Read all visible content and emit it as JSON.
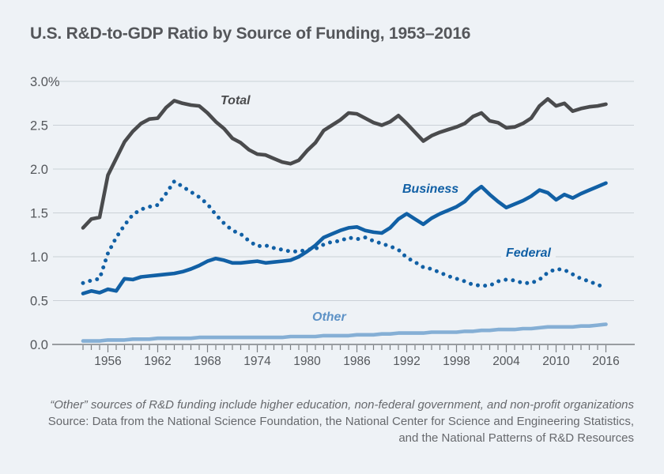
{
  "page": {
    "background": "#eef2f6",
    "title": "U.S. R&D-to-GDP Ratio by Source of Funding, 1953–2016"
  },
  "footnote": {
    "line1": "“Other” sources of R&D funding include higher education, non-federal government, and non-profit organizations",
    "line2": "Source: Data from the National Science Foundation, the National Center for Science and Engineering Statistics,",
    "line3": "and the National Patterns of R&D Resources"
  },
  "chart_data": {
    "type": "line",
    "title": "U.S. R&D-to-GDP Ratio by Source of Funding, 1953–2016",
    "xlabel": "",
    "ylabel": "",
    "x_range": [
      1953,
      2016
    ],
    "ylim": [
      0,
      3.0
    ],
    "grid": "horizontal",
    "grid_color": "#cbd1d7",
    "axis_color": "#7c8084",
    "y_ticks": [
      {
        "value": 3.0,
        "label": "3.0%"
      },
      {
        "value": 2.5,
        "label": "2.5"
      },
      {
        "value": 2.0,
        "label": "2.0"
      },
      {
        "value": 1.5,
        "label": "1.5"
      },
      {
        "value": 1.0,
        "label": "1.0"
      },
      {
        "value": 0.5,
        "label": "0.5"
      },
      {
        "value": 0.0,
        "label": "0.0"
      }
    ],
    "x_tick_labels": [
      "1956",
      "1962",
      "1968",
      "1974",
      "1980",
      "1986",
      "1992",
      "1998",
      "2004",
      "2010",
      "2016"
    ],
    "years": [
      1953,
      1954,
      1955,
      1956,
      1957,
      1958,
      1959,
      1960,
      1961,
      1962,
      1963,
      1964,
      1965,
      1966,
      1967,
      1968,
      1969,
      1970,
      1971,
      1972,
      1973,
      1974,
      1975,
      1976,
      1977,
      1978,
      1979,
      1980,
      1981,
      1982,
      1983,
      1984,
      1985,
      1986,
      1987,
      1988,
      1989,
      1990,
      1991,
      1992,
      1993,
      1994,
      1995,
      1996,
      1997,
      1998,
      1999,
      2000,
      2001,
      2002,
      2003,
      2004,
      2005,
      2006,
      2007,
      2008,
      2009,
      2010,
      2011,
      2012,
      2013,
      2014,
      2015,
      2016
    ],
    "series": [
      {
        "name": "Total",
        "color": "#4a4b4d",
        "style": "solid",
        "width": 4.6,
        "values": [
          1.33,
          1.43,
          1.45,
          1.93,
          2.12,
          2.31,
          2.43,
          2.52,
          2.57,
          2.58,
          2.7,
          2.78,
          2.75,
          2.73,
          2.72,
          2.64,
          2.54,
          2.46,
          2.35,
          2.3,
          2.22,
          2.17,
          2.16,
          2.12,
          2.08,
          2.06,
          2.1,
          2.21,
          2.3,
          2.44,
          2.5,
          2.56,
          2.64,
          2.63,
          2.58,
          2.53,
          2.5,
          2.54,
          2.61,
          2.52,
          2.42,
          2.32,
          2.38,
          2.42,
          2.45,
          2.48,
          2.52,
          2.6,
          2.64,
          2.55,
          2.53,
          2.47,
          2.48,
          2.52,
          2.58,
          2.72,
          2.8,
          2.72,
          2.75,
          2.66,
          2.69,
          2.71,
          2.72,
          2.74
        ]
      },
      {
        "name": "Business",
        "color": "#1160a5",
        "style": "solid",
        "width": 4.6,
        "values": [
          0.58,
          0.61,
          0.59,
          0.63,
          0.61,
          0.75,
          0.74,
          0.77,
          0.78,
          0.79,
          0.8,
          0.81,
          0.83,
          0.86,
          0.9,
          0.95,
          0.98,
          0.96,
          0.93,
          0.93,
          0.94,
          0.95,
          0.93,
          0.94,
          0.95,
          0.96,
          1.0,
          1.06,
          1.13,
          1.22,
          1.26,
          1.3,
          1.33,
          1.34,
          1.3,
          1.28,
          1.27,
          1.33,
          1.43,
          1.49,
          1.43,
          1.37,
          1.44,
          1.49,
          1.53,
          1.57,
          1.63,
          1.73,
          1.8,
          1.71,
          1.63,
          1.56,
          1.6,
          1.64,
          1.69,
          1.76,
          1.73,
          1.65,
          1.71,
          1.67,
          1.72,
          1.76,
          1.8,
          1.84
        ]
      },
      {
        "name": "Federal",
        "color": "#1160a5",
        "style": "dotted",
        "width": 5,
        "values": [
          0.7,
          0.73,
          0.75,
          1.04,
          1.22,
          1.36,
          1.48,
          1.54,
          1.57,
          1.59,
          1.72,
          1.86,
          1.8,
          1.74,
          1.68,
          1.6,
          1.48,
          1.38,
          1.3,
          1.26,
          1.18,
          1.12,
          1.13,
          1.1,
          1.08,
          1.06,
          1.06,
          1.08,
          1.09,
          1.14,
          1.17,
          1.18,
          1.22,
          1.2,
          1.22,
          1.18,
          1.15,
          1.12,
          1.08,
          0.99,
          0.94,
          0.88,
          0.86,
          0.82,
          0.78,
          0.75,
          0.72,
          0.68,
          0.67,
          0.67,
          0.72,
          0.74,
          0.73,
          0.7,
          0.7,
          0.74,
          0.82,
          0.86,
          0.85,
          0.8,
          0.75,
          0.72,
          0.68,
          0.65
        ]
      },
      {
        "name": "Other",
        "color": "#85afd5",
        "style": "solid",
        "width": 4.6,
        "values": [
          0.04,
          0.04,
          0.04,
          0.05,
          0.05,
          0.05,
          0.06,
          0.06,
          0.06,
          0.07,
          0.07,
          0.07,
          0.07,
          0.07,
          0.08,
          0.08,
          0.08,
          0.08,
          0.08,
          0.08,
          0.08,
          0.08,
          0.08,
          0.08,
          0.08,
          0.09,
          0.09,
          0.09,
          0.09,
          0.1,
          0.1,
          0.1,
          0.1,
          0.11,
          0.11,
          0.11,
          0.12,
          0.12,
          0.13,
          0.13,
          0.13,
          0.13,
          0.14,
          0.14,
          0.14,
          0.14,
          0.15,
          0.15,
          0.16,
          0.16,
          0.17,
          0.17,
          0.17,
          0.18,
          0.18,
          0.19,
          0.2,
          0.2,
          0.2,
          0.2,
          0.21,
          0.21,
          0.22,
          0.23
        ]
      }
    ]
  }
}
